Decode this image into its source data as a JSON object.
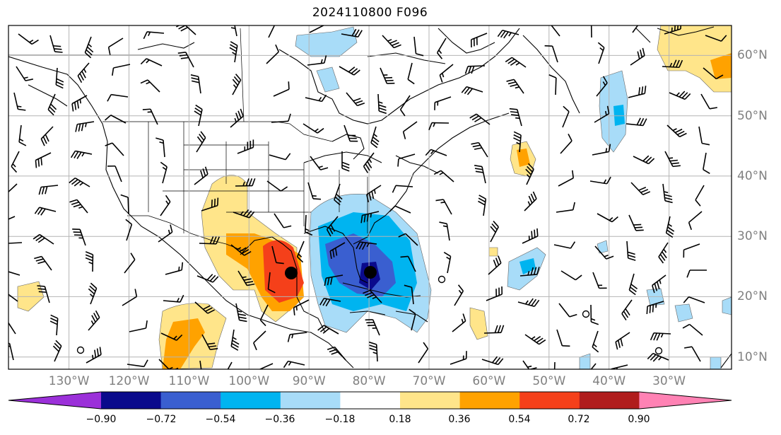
{
  "title": "2024110800 F096",
  "map": {
    "lon_range": [
      -138,
      -15
    ],
    "lat_range": [
      8,
      65
    ],
    "lon_ticks": [
      "130°W",
      "120°W",
      "110°W",
      "100°W",
      "90°W",
      "80°W",
      "70°W",
      "60°W",
      "50°W",
      "40°W",
      "30°W"
    ],
    "lat_ticks": [
      "10°N",
      "20°N",
      "30°N",
      "40°N",
      "50°N",
      "60°N"
    ],
    "grid": true,
    "features": [
      "coastlines",
      "country-borders",
      "us-state-borders",
      "wind-barbs",
      "shaded-anomaly-contours",
      "storm-center-markers"
    ]
  },
  "colorbar": {
    "levels": [
      "−0.90",
      "−0.72",
      "−0.54",
      "−0.36",
      "−0.18",
      "0.18",
      "0.36",
      "0.54",
      "0.72",
      "0.90"
    ],
    "colors": [
      "#9b30d9",
      "#0a0a8c",
      "#3a5fd0",
      "#00b4f0",
      "#a8dcf8",
      "#ffffff",
      "#ffe58a",
      "#ffa200",
      "#f5401a",
      "#b01c1c",
      "#ff82b4"
    ],
    "extend": "both"
  },
  "markers": [
    {
      "name": "storm-center-gulf",
      "lon": -93.5,
      "lat": 24
    },
    {
      "name": "low-center-bahamas",
      "lon": -80,
      "lat": 24
    }
  ]
}
